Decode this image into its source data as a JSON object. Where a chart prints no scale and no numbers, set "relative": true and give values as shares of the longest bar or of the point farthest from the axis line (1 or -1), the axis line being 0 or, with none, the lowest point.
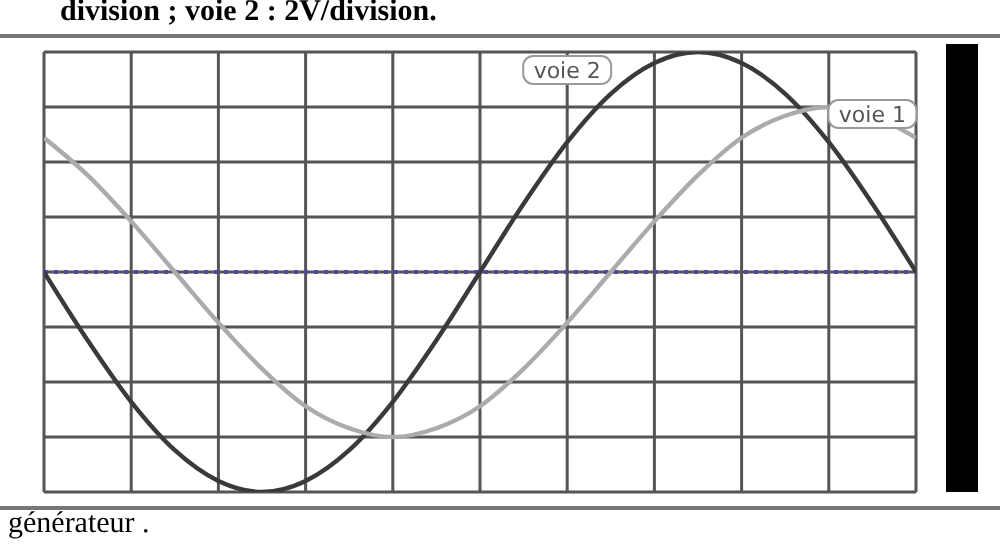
{
  "chart_data": {
    "type": "line",
    "relative": true,
    "grid": true,
    "marker": "none",
    "line_style": "solid",
    "annotations": [
      "division ; voie 2 : 2V/division.",
      "générateur ."
    ],
    "categories": [
      null,
      null,
      null,
      null,
      null,
      null,
      null,
      null,
      null,
      null,
      null,
      null,
      null,
      null,
      null,
      null,
      null,
      null,
      null,
      null,
      null
    ],
    "ref_lines": [
      {
        "axis": "y",
        "value": 0,
        "color": "#4a4aa8",
        "line_style": "dotted"
      }
    ],
    "series": [
      {
        "name": "voie 2",
        "color": "#3a3a3a",
        "values": [
          0,
          -0.31,
          -0.59,
          -0.81,
          -0.95,
          -1,
          -0.95,
          -0.81,
          -0.59,
          -0.31,
          0,
          0.31,
          0.59,
          0.81,
          0.95,
          1,
          0.95,
          0.81,
          0.59,
          0.31,
          0
        ]
      },
      {
        "name": "voie 1",
        "color": "#ababab",
        "values": [
          0.61,
          0.44,
          0.23,
          0,
          -0.23,
          -0.44,
          -0.61,
          -0.71,
          -0.75,
          -0.71,
          -0.61,
          -0.44,
          -0.23,
          0,
          0.23,
          0.44,
          0.61,
          0.71,
          0.75,
          0.71,
          0.61
        ]
      }
    ]
  }
}
